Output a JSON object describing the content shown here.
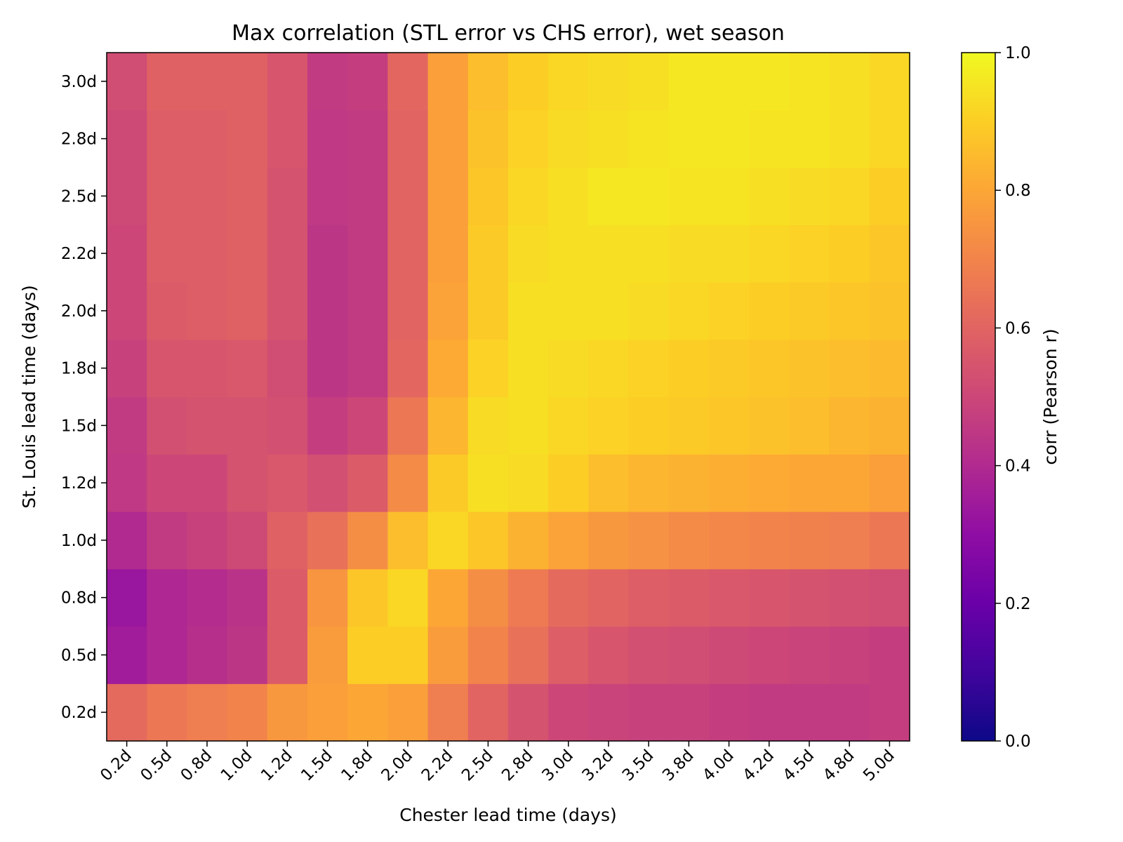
{
  "chart_data": {
    "type": "heatmap",
    "title": "Max correlation (STL error vs CHS error), wet season",
    "xlabel": "Chester lead time (days)",
    "ylabel": "St. Louis lead time (days)",
    "x_categories": [
      "0.2d",
      "0.5d",
      "0.8d",
      "1.0d",
      "1.2d",
      "1.5d",
      "1.8d",
      "2.0d",
      "2.2d",
      "2.5d",
      "2.8d",
      "3.0d",
      "3.2d",
      "3.5d",
      "3.8d",
      "4.0d",
      "4.2d",
      "4.5d",
      "4.8d",
      "5.0d"
    ],
    "y_categories": [
      "0.2d",
      "0.5d",
      "0.8d",
      "1.0d",
      "1.2d",
      "1.5d",
      "1.8d",
      "2.0d",
      "2.2d",
      "2.5d",
      "2.8d",
      "3.0d"
    ],
    "values": [
      [
        0.62,
        0.66,
        0.68,
        0.7,
        0.76,
        0.78,
        0.8,
        0.78,
        0.68,
        0.6,
        0.54,
        0.5,
        0.49,
        0.48,
        0.48,
        0.47,
        0.46,
        0.46,
        0.46,
        0.47
      ],
      [
        0.35,
        0.39,
        0.42,
        0.44,
        0.57,
        0.77,
        0.9,
        0.9,
        0.77,
        0.7,
        0.64,
        0.58,
        0.55,
        0.53,
        0.52,
        0.51,
        0.5,
        0.49,
        0.48,
        0.47
      ],
      [
        0.33,
        0.39,
        0.41,
        0.43,
        0.57,
        0.75,
        0.88,
        0.92,
        0.8,
        0.73,
        0.67,
        0.62,
        0.6,
        0.58,
        0.57,
        0.56,
        0.55,
        0.54,
        0.53,
        0.52
      ],
      [
        0.4,
        0.46,
        0.48,
        0.51,
        0.59,
        0.64,
        0.73,
        0.86,
        0.92,
        0.88,
        0.83,
        0.79,
        0.76,
        0.74,
        0.72,
        0.71,
        0.7,
        0.69,
        0.68,
        0.66
      ],
      [
        0.45,
        0.5,
        0.5,
        0.54,
        0.56,
        0.53,
        0.57,
        0.72,
        0.89,
        0.94,
        0.93,
        0.9,
        0.86,
        0.84,
        0.83,
        0.82,
        0.81,
        0.8,
        0.8,
        0.78
      ],
      [
        0.46,
        0.53,
        0.54,
        0.54,
        0.53,
        0.47,
        0.5,
        0.66,
        0.84,
        0.93,
        0.94,
        0.92,
        0.91,
        0.9,
        0.89,
        0.88,
        0.87,
        0.86,
        0.84,
        0.83
      ],
      [
        0.48,
        0.55,
        0.55,
        0.56,
        0.52,
        0.44,
        0.46,
        0.61,
        0.81,
        0.91,
        0.94,
        0.93,
        0.92,
        0.91,
        0.9,
        0.89,
        0.88,
        0.87,
        0.86,
        0.85
      ],
      [
        0.5,
        0.57,
        0.58,
        0.59,
        0.54,
        0.44,
        0.46,
        0.6,
        0.79,
        0.89,
        0.94,
        0.94,
        0.94,
        0.93,
        0.92,
        0.91,
        0.9,
        0.89,
        0.88,
        0.87
      ],
      [
        0.5,
        0.58,
        0.58,
        0.59,
        0.54,
        0.44,
        0.46,
        0.6,
        0.78,
        0.89,
        0.93,
        0.94,
        0.94,
        0.94,
        0.93,
        0.93,
        0.92,
        0.91,
        0.9,
        0.88
      ],
      [
        0.51,
        0.58,
        0.58,
        0.59,
        0.54,
        0.45,
        0.46,
        0.6,
        0.78,
        0.88,
        0.92,
        0.94,
        0.96,
        0.96,
        0.95,
        0.95,
        0.94,
        0.93,
        0.92,
        0.9
      ],
      [
        0.51,
        0.58,
        0.58,
        0.59,
        0.55,
        0.45,
        0.46,
        0.6,
        0.78,
        0.87,
        0.91,
        0.93,
        0.94,
        0.95,
        0.96,
        0.96,
        0.95,
        0.95,
        0.94,
        0.92
      ],
      [
        0.52,
        0.59,
        0.59,
        0.59,
        0.55,
        0.46,
        0.47,
        0.61,
        0.78,
        0.86,
        0.9,
        0.92,
        0.93,
        0.94,
        0.96,
        0.96,
        0.96,
        0.95,
        0.94,
        0.92
      ]
    ],
    "colorbar": {
      "label": "corr (Pearson r)",
      "range": [
        0.0,
        1.0
      ],
      "ticks": [
        "0.0",
        "0.2",
        "0.4",
        "0.6",
        "0.8",
        "1.0"
      ],
      "colormap": "plasma",
      "colormap_stops": [
        "#0d0887",
        "#41049d",
        "#6a00a8",
        "#8f0da4",
        "#b12a90",
        "#cc4778",
        "#e16462",
        "#f2844b",
        "#fca636",
        "#fcce25",
        "#f0f921"
      ]
    },
    "grid": false
  }
}
